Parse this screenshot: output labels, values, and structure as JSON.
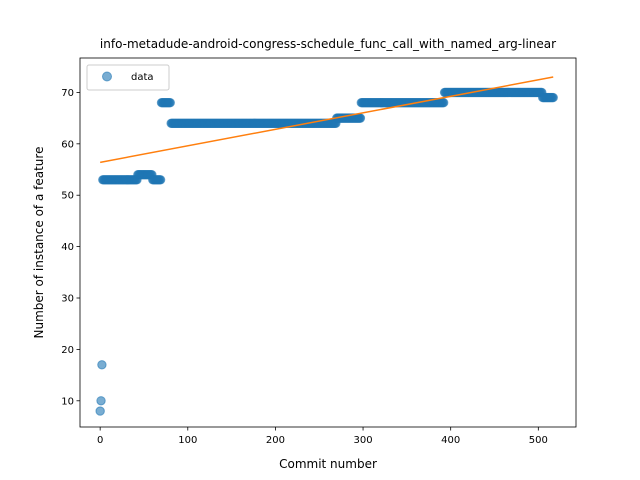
{
  "chart_data": {
    "type": "scatter",
    "title": "info-metadude-android-congress-schedule_func_call_with_named_arg-linear",
    "xlabel": "Commit number",
    "ylabel": "Number of instance of a feature",
    "xlim": [
      -23,
      543
    ],
    "ylim": [
      4.9,
      76.7
    ],
    "xticks": [
      0,
      100,
      200,
      300,
      400,
      500
    ],
    "yticks": [
      10,
      20,
      30,
      40,
      50,
      60,
      70
    ],
    "grid": false,
    "legend": {
      "placement": "top-left",
      "entries": [
        "data"
      ]
    },
    "colors": {
      "data": "#1f77b4",
      "fit": "#ff7f0e"
    },
    "series": [
      {
        "name": "data",
        "kind": "points",
        "segments": [
          {
            "x_start": 0,
            "x_end": 0,
            "y": 8
          },
          {
            "x_start": 1,
            "x_end": 1,
            "y": 10
          },
          {
            "x_start": 2,
            "x_end": 2,
            "y": 17
          },
          {
            "x_start": 3,
            "x_end": 42,
            "y": 53
          },
          {
            "x_start": 43,
            "x_end": 59,
            "y": 54
          },
          {
            "x_start": 60,
            "x_end": 69,
            "y": 53
          },
          {
            "x_start": 70,
            "x_end": 80,
            "y": 68
          },
          {
            "x_start": 81,
            "x_end": 269,
            "y": 64
          },
          {
            "x_start": 270,
            "x_end": 297,
            "y": 65
          },
          {
            "x_start": 298,
            "x_end": 392,
            "y": 68
          },
          {
            "x_start": 393,
            "x_end": 504,
            "y": 70
          },
          {
            "x_start": 505,
            "x_end": 517,
            "y": 69
          }
        ]
      },
      {
        "kind": "line",
        "x": [
          0,
          517
        ],
        "y": [
          56.4,
          73.0
        ]
      }
    ]
  }
}
